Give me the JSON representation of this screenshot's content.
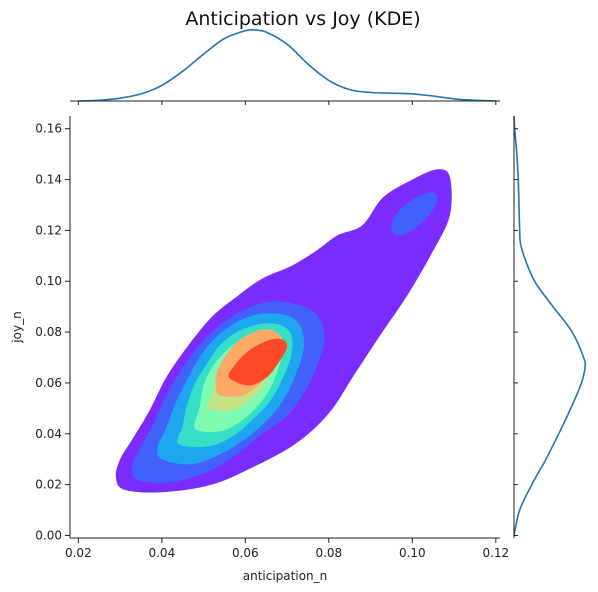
{
  "chart_data": {
    "type": "kde-joint",
    "title": "Anticipation vs Joy (KDE)",
    "xlabel": "anticipation_n",
    "ylabel": "joy_n",
    "xlim": [
      0.018,
      0.121
    ],
    "ylim": [
      -0.001,
      0.165
    ],
    "xticks": [
      "0.02",
      "0.04",
      "0.06",
      "0.08",
      "0.10",
      "0.12"
    ],
    "yticks": [
      "0.00",
      "0.02",
      "0.04",
      "0.06",
      "0.08",
      "0.10",
      "0.12",
      "0.14",
      "0.16"
    ],
    "xtick_values": [
      0.02,
      0.04,
      0.06,
      0.08,
      0.1,
      0.12
    ],
    "ytick_values": [
      0.0,
      0.02,
      0.04,
      0.06,
      0.08,
      0.1,
      0.12,
      0.14,
      0.16
    ],
    "grid": false,
    "colormap": "rainbow",
    "marginal_color": "#1f77b4",
    "contour_levels": [
      {
        "level": 1,
        "color": "#7a2cff",
        "polygon": [
          [
            0.031,
            0.018
          ],
          [
            0.04,
            0.017
          ],
          [
            0.052,
            0.02
          ],
          [
            0.062,
            0.027
          ],
          [
            0.072,
            0.036
          ],
          [
            0.08,
            0.048
          ],
          [
            0.086,
            0.063
          ],
          [
            0.092,
            0.078
          ],
          [
            0.099,
            0.095
          ],
          [
            0.105,
            0.112
          ],
          [
            0.109,
            0.126
          ],
          [
            0.109,
            0.141
          ],
          [
            0.106,
            0.144
          ],
          [
            0.1,
            0.14
          ],
          [
            0.093,
            0.133
          ],
          [
            0.088,
            0.122
          ],
          [
            0.082,
            0.118
          ],
          [
            0.077,
            0.112
          ],
          [
            0.071,
            0.106
          ],
          [
            0.064,
            0.101
          ],
          [
            0.058,
            0.094
          ],
          [
            0.052,
            0.086
          ],
          [
            0.046,
            0.074
          ],
          [
            0.041,
            0.062
          ],
          [
            0.037,
            0.049
          ],
          [
            0.033,
            0.038
          ],
          [
            0.03,
            0.03
          ],
          [
            0.029,
            0.023
          ]
        ]
      },
      {
        "level": 2,
        "color": "#4062fa",
        "polygon": [
          [
            0.034,
            0.022
          ],
          [
            0.042,
            0.021
          ],
          [
            0.051,
            0.025
          ],
          [
            0.058,
            0.032
          ],
          [
            0.064,
            0.04
          ],
          [
            0.07,
            0.047
          ],
          [
            0.074,
            0.056
          ],
          [
            0.077,
            0.066
          ],
          [
            0.079,
            0.078
          ],
          [
            0.077,
            0.087
          ],
          [
            0.072,
            0.091
          ],
          [
            0.066,
            0.092
          ],
          [
            0.06,
            0.089
          ],
          [
            0.054,
            0.083
          ],
          [
            0.049,
            0.075
          ],
          [
            0.045,
            0.066
          ],
          [
            0.041,
            0.055
          ],
          [
            0.038,
            0.044
          ],
          [
            0.035,
            0.035
          ],
          [
            0.033,
            0.028
          ]
        ]
      },
      {
        "level": 2,
        "color": "#4062fa",
        "polygon": [
          [
            0.096,
            0.118
          ],
          [
            0.1,
            0.12
          ],
          [
            0.104,
            0.126
          ],
          [
            0.106,
            0.132
          ],
          [
            0.105,
            0.135
          ],
          [
            0.101,
            0.133
          ],
          [
            0.097,
            0.128
          ],
          [
            0.095,
            0.122
          ]
        ]
      },
      {
        "level": 3,
        "color": "#1ea6ee",
        "polygon": [
          [
            0.04,
            0.03
          ],
          [
            0.047,
            0.028
          ],
          [
            0.054,
            0.032
          ],
          [
            0.06,
            0.038
          ],
          [
            0.065,
            0.045
          ],
          [
            0.069,
            0.053
          ],
          [
            0.072,
            0.063
          ],
          [
            0.074,
            0.074
          ],
          [
            0.073,
            0.083
          ],
          [
            0.069,
            0.087
          ],
          [
            0.063,
            0.087
          ],
          [
            0.058,
            0.084
          ],
          [
            0.053,
            0.078
          ],
          [
            0.049,
            0.07
          ],
          [
            0.046,
            0.061
          ],
          [
            0.043,
            0.051
          ],
          [
            0.041,
            0.042
          ],
          [
            0.039,
            0.035
          ]
        ]
      },
      {
        "level": 4,
        "color": "#36e0c8",
        "polygon": [
          [
            0.044,
            0.036
          ],
          [
            0.051,
            0.035
          ],
          [
            0.057,
            0.039
          ],
          [
            0.062,
            0.046
          ],
          [
            0.066,
            0.053
          ],
          [
            0.069,
            0.062
          ],
          [
            0.071,
            0.071
          ],
          [
            0.071,
            0.079
          ],
          [
            0.068,
            0.083
          ],
          [
            0.063,
            0.083
          ],
          [
            0.058,
            0.08
          ],
          [
            0.054,
            0.075
          ],
          [
            0.051,
            0.068
          ],
          [
            0.048,
            0.06
          ],
          [
            0.046,
            0.051
          ],
          [
            0.045,
            0.043
          ]
        ]
      },
      {
        "level": 5,
        "color": "#7ffab0",
        "polygon": [
          [
            0.048,
            0.042
          ],
          [
            0.054,
            0.041
          ],
          [
            0.059,
            0.045
          ],
          [
            0.063,
            0.051
          ],
          [
            0.066,
            0.058
          ],
          [
            0.068,
            0.066
          ],
          [
            0.069,
            0.073
          ],
          [
            0.068,
            0.078
          ],
          [
            0.064,
            0.079
          ],
          [
            0.059,
            0.077
          ],
          [
            0.055,
            0.072
          ],
          [
            0.052,
            0.066
          ],
          [
            0.05,
            0.059
          ],
          [
            0.049,
            0.05
          ]
        ]
      },
      {
        "level": 6,
        "color": "#c3e484",
        "polygon": [
          [
            0.051,
            0.05
          ],
          [
            0.056,
            0.049
          ],
          [
            0.06,
            0.052
          ],
          [
            0.064,
            0.058
          ],
          [
            0.066,
            0.065
          ],
          [
            0.067,
            0.071
          ],
          [
            0.066,
            0.075
          ],
          [
            0.062,
            0.075
          ],
          [
            0.058,
            0.072
          ],
          [
            0.055,
            0.067
          ],
          [
            0.053,
            0.061
          ],
          [
            0.052,
            0.055
          ]
        ]
      },
      {
        "level": 7,
        "color": "#fea966",
        "polygon": [
          [
            0.054,
            0.055
          ],
          [
            0.059,
            0.055
          ],
          [
            0.063,
            0.059
          ],
          [
            0.066,
            0.065
          ],
          [
            0.068,
            0.071
          ],
          [
            0.069,
            0.077
          ],
          [
            0.066,
            0.081
          ],
          [
            0.062,
            0.08
          ],
          [
            0.058,
            0.076
          ],
          [
            0.055,
            0.07
          ],
          [
            0.053,
            0.063
          ],
          [
            0.053,
            0.058
          ]
        ]
      },
      {
        "level": 8,
        "color": "#ff4a28",
        "polygon": [
          [
            0.057,
            0.061
          ],
          [
            0.061,
            0.059
          ],
          [
            0.065,
            0.062
          ],
          [
            0.068,
            0.068
          ],
          [
            0.07,
            0.074
          ],
          [
            0.069,
            0.077
          ],
          [
            0.066,
            0.077
          ],
          [
            0.062,
            0.074
          ],
          [
            0.059,
            0.07
          ],
          [
            0.057,
            0.066
          ],
          [
            0.056,
            0.063
          ]
        ]
      }
    ],
    "marginal_x": {
      "x": [
        0.02,
        0.025,
        0.03,
        0.035,
        0.04,
        0.045,
        0.05,
        0.055,
        0.06,
        0.062,
        0.065,
        0.07,
        0.075,
        0.08,
        0.085,
        0.09,
        0.095,
        0.1,
        0.105,
        0.11,
        0.115,
        0.12
      ],
      "density": [
        0.0,
        0.01,
        0.04,
        0.1,
        0.22,
        0.42,
        0.66,
        0.88,
        0.99,
        1.0,
        0.97,
        0.8,
        0.52,
        0.29,
        0.16,
        0.12,
        0.11,
        0.1,
        0.07,
        0.03,
        0.01,
        0.0
      ]
    },
    "marginal_y": {
      "y": [
        0.0,
        0.01,
        0.02,
        0.03,
        0.04,
        0.05,
        0.06,
        0.066,
        0.07,
        0.08,
        0.09,
        0.1,
        0.11,
        0.115,
        0.12,
        0.13,
        0.14,
        0.15,
        0.16,
        0.165
      ],
      "density": [
        0.0,
        0.08,
        0.25,
        0.45,
        0.63,
        0.8,
        0.95,
        1.0,
        0.98,
        0.82,
        0.55,
        0.29,
        0.14,
        0.09,
        0.08,
        0.07,
        0.06,
        0.04,
        0.01,
        0.0
      ]
    }
  }
}
